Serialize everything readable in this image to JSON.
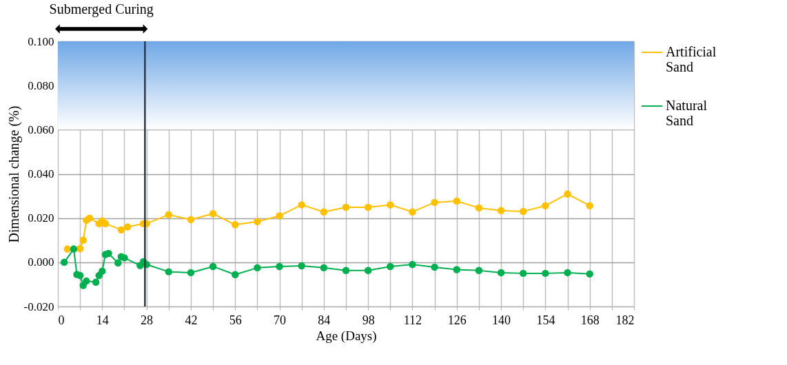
{
  "chart_data": {
    "type": "line",
    "xlabel": "Age (Days)",
    "ylabel": "Dimensional change (%)",
    "xlim": [
      0,
      182
    ],
    "ylim": [
      -0.02,
      0.1
    ],
    "xticks": [
      0,
      {
        "value": 7,
        "label": null
      },
      14,
      {
        "value": 21,
        "label": null
      },
      28,
      {
        "value": 35,
        "label": null
      },
      42,
      {
        "value": 49,
        "label": null
      },
      56,
      {
        "value": 63,
        "label": null
      },
      70,
      {
        "value": 77,
        "label": null
      },
      84,
      {
        "value": 91,
        "label": null
      },
      98,
      {
        "value": 105,
        "label": null
      },
      112,
      {
        "value": 119,
        "label": null
      },
      126,
      {
        "value": 133,
        "label": null
      },
      140,
      {
        "value": 147,
        "label": null
      },
      154,
      {
        "value": 161,
        "label": null
      },
      168,
      {
        "value": 175,
        "label": null
      },
      182
    ],
    "yticks": [
      {
        "value": -0.02,
        "label": "-0.020"
      },
      {
        "value": 0,
        "label": "0.000"
      },
      {
        "value": 0.02,
        "label": "0.020"
      },
      {
        "value": 0.04,
        "label": "0.040"
      },
      {
        "value": 0.06,
        "label": "0.060"
      },
      {
        "value": 0.08,
        "label": "0.080"
      },
      {
        "value": 0.1,
        "label": "0.100"
      }
    ],
    "grid": true,
    "legend": "right",
    "marker": "circle",
    "line_style": "solid",
    "series": [
      {
        "name": "Artificial Sand",
        "color": "#ffc000",
        "x": [
          3,
          7,
          8,
          9,
          10,
          13,
          14,
          15,
          20,
          22,
          27,
          28,
          35,
          42,
          49,
          56,
          63,
          70,
          77,
          84,
          91,
          98,
          105,
          112,
          119,
          126,
          133,
          140,
          147,
          154,
          161,
          168
        ],
        "values": [
          0.006,
          0.0062,
          0.01,
          0.019,
          0.02,
          0.0175,
          0.0187,
          0.0175,
          0.0147,
          0.016,
          0.0175,
          0.0175,
          0.0215,
          0.0193,
          0.022,
          0.017,
          0.0184,
          0.021,
          0.026,
          0.0228,
          0.0249,
          0.0249,
          0.026,
          0.0228,
          0.0271,
          0.0277,
          0.0246,
          0.0234,
          0.023,
          0.0256,
          0.0309,
          0.0256
        ]
      },
      {
        "name": "Natural Sand",
        "color": "#00b050",
        "x": [
          2,
          5,
          6,
          7,
          8,
          9,
          12,
          13,
          14,
          15,
          16,
          19,
          20,
          21,
          26,
          27,
          28,
          35,
          42,
          49,
          56,
          63,
          70,
          77,
          84,
          91,
          98,
          105,
          112,
          119,
          126,
          133,
          140,
          147,
          154,
          161,
          168
        ],
        "values": [
          0,
          0.006,
          -0.0055,
          -0.006,
          -0.0105,
          -0.0085,
          -0.009,
          -0.006,
          -0.004,
          0.0035,
          0.004,
          -0.0003,
          0.0025,
          0.002,
          -0.0015,
          0.0003,
          -0.001,
          -0.0043,
          -0.0047,
          -0.0019,
          -0.0056,
          -0.0025,
          -0.0019,
          -0.0016,
          -0.0025,
          -0.0037,
          -0.0037,
          -0.0019,
          -0.001,
          -0.0022,
          -0.0033,
          -0.0037,
          -0.0047,
          -0.005,
          -0.005,
          -0.0047,
          -0.0053
        ]
      }
    ],
    "ref_lines": [
      {
        "axis": "x",
        "value": 27.5,
        "color": "#2f3542"
      }
    ],
    "bands": [
      {
        "axis": "y",
        "from": 0.06,
        "to": 0.1,
        "color": "#6fa8e6"
      }
    ],
    "annotations": [
      "Submerged Curing"
    ]
  }
}
